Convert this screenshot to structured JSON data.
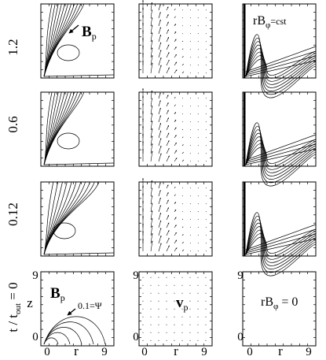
{
  "figure": {
    "rows": [
      {
        "row_label": "1.2"
      },
      {
        "row_label": "0.6"
      },
      {
        "row_label": "0.12"
      },
      {
        "row_label": "t / t_out = 0"
      }
    ],
    "row_label_parts": {
      "lead": "t / t",
      "sub": "out",
      "tail": " = 0"
    },
    "columns": [
      {
        "label_main": "B",
        "label_sub": "p",
        "quantity": "poloidal magnetic field lines"
      },
      {
        "label_main": "v",
        "label_sub": "p",
        "quantity": "poloidal velocity vectors"
      },
      {
        "label_main": "rB",
        "label_sub": "φ",
        "quantity": "toroidal field contours"
      }
    ],
    "annotations": {
      "top_left": {
        "main": "B",
        "sub": "p"
      },
      "top_right": {
        "main": "rB",
        "sub": "φ",
        "suffix": "=cst"
      },
      "bottom_left_psi": "0.1=Ψ",
      "bottom_right": {
        "main": "rB",
        "sub": "φ",
        "suffix": " = 0"
      },
      "bottom_middle": {
        "main": "v",
        "sub": "p"
      }
    },
    "axes": {
      "x_label": "r",
      "z_label": "z",
      "x_ticks": [
        "0",
        "9"
      ],
      "y_ticks": [
        "0",
        "9"
      ],
      "x_range": [
        0,
        9
      ],
      "z_range": [
        0,
        9
      ]
    }
  }
}
